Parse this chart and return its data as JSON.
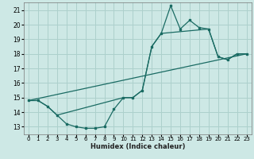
{
  "xlabel": "Humidex (Indice chaleur)",
  "background_color": "#cde8e5",
  "grid_color": "#add0cc",
  "line_color": "#1a6b63",
  "xlim": [
    -0.5,
    23.5
  ],
  "ylim": [
    12.5,
    21.5
  ],
  "yticks": [
    13,
    14,
    15,
    16,
    17,
    18,
    19,
    20,
    21
  ],
  "xticks": [
    0,
    1,
    2,
    3,
    4,
    5,
    6,
    7,
    8,
    9,
    10,
    11,
    12,
    13,
    14,
    15,
    16,
    17,
    18,
    19,
    20,
    21,
    22,
    23
  ],
  "series1_x": [
    0,
    1,
    2,
    3,
    4,
    5,
    6,
    7,
    8,
    9,
    10,
    11,
    12,
    13,
    14,
    15,
    16,
    17,
    18,
    19,
    20,
    21,
    22,
    23
  ],
  "series1_y": [
    14.8,
    14.8,
    14.4,
    13.8,
    13.2,
    13.0,
    12.9,
    12.9,
    13.0,
    14.2,
    15.0,
    15.0,
    15.5,
    18.5,
    19.4,
    21.3,
    19.7,
    20.3,
    19.8,
    19.7,
    17.8,
    17.6,
    18.0,
    18.0
  ],
  "series2_x": [
    0,
    1,
    2,
    3,
    10,
    11,
    12,
    13,
    14,
    19,
    20,
    21,
    22,
    23
  ],
  "series2_y": [
    14.8,
    14.8,
    14.4,
    13.8,
    15.0,
    15.0,
    15.5,
    18.5,
    19.4,
    19.7,
    17.8,
    17.6,
    18.0,
    18.0
  ],
  "series3_x": [
    0,
    23
  ],
  "series3_y": [
    14.8,
    18.0
  ]
}
